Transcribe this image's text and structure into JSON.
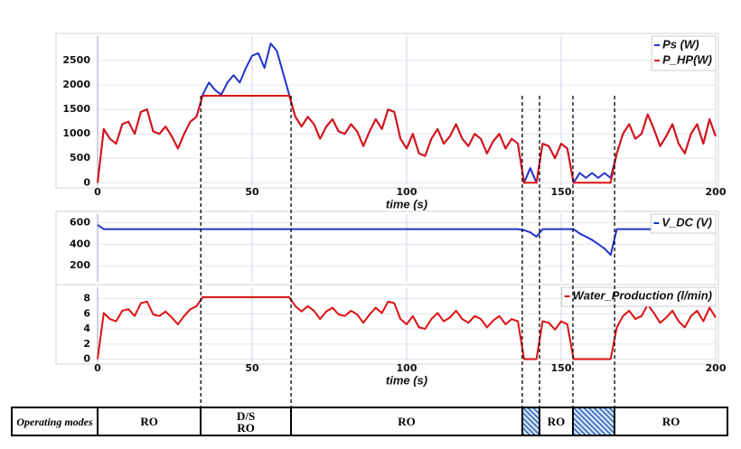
{
  "chart_data": [
    {
      "type": "line",
      "xlabel": "time (s)",
      "xlim": [
        0,
        200
      ],
      "ylim": [
        -50,
        3000
      ],
      "xticks": [
        0,
        50,
        100,
        150,
        200
      ],
      "yticks": [
        0,
        500,
        1000,
        1500,
        2000,
        2500
      ],
      "grid": true,
      "legend": "upper right",
      "show_xtick_labels": true,
      "x": [
        0,
        2,
        4,
        6,
        8,
        10,
        12,
        14,
        16,
        18,
        20,
        22,
        24,
        26,
        28,
        30,
        32,
        34,
        36,
        38,
        40,
        42,
        44,
        46,
        48,
        50,
        52,
        54,
        56,
        58,
        60,
        62,
        64,
        66,
        68,
        70,
        72,
        74,
        76,
        78,
        80,
        82,
        84,
        86,
        88,
        90,
        92,
        94,
        96,
        98,
        100,
        102,
        104,
        106,
        108,
        110,
        112,
        114,
        116,
        118,
        120,
        122,
        124,
        126,
        128,
        130,
        132,
        134,
        136,
        138,
        140,
        142,
        144,
        146,
        148,
        150,
        152,
        154,
        156,
        158,
        160,
        162,
        164,
        166,
        168,
        170,
        172,
        174,
        176,
        178,
        180,
        182,
        184,
        186,
        188,
        190,
        192,
        194,
        196,
        198,
        200
      ],
      "series": [
        {
          "name": "Ps (W)",
          "color": "#2233cc",
          "values": [
            0,
            1100,
            900,
            800,
            1200,
            1250,
            1000,
            1450,
            1500,
            1050,
            1000,
            1150,
            950,
            700,
            1000,
            1250,
            1350,
            1800,
            2050,
            1900,
            1800,
            2050,
            2200,
            2050,
            2350,
            2600,
            2650,
            2350,
            2850,
            2700,
            2250,
            1800,
            1350,
            1150,
            1350,
            1200,
            900,
            1150,
            1300,
            1050,
            1000,
            1200,
            1050,
            750,
            1050,
            1300,
            1100,
            1500,
            1450,
            900,
            700,
            1000,
            600,
            550,
            900,
            1100,
            800,
            950,
            1200,
            900,
            750,
            1000,
            900,
            600,
            850,
            1000,
            700,
            900,
            800,
            0,
            300,
            0,
            800,
            750,
            500,
            800,
            700,
            0,
            200,
            100,
            200,
            100,
            200,
            100,
            600,
            1000,
            1200,
            900,
            1000,
            1400,
            1100,
            750,
            950,
            1200,
            800,
            600,
            1000,
            1200,
            800,
            1300,
            950
          ]
        },
        {
          "name": "P_HP(W)",
          "color": "#dd1111",
          "values": [
            0,
            1100,
            900,
            800,
            1200,
            1250,
            1000,
            1450,
            1500,
            1050,
            1000,
            1150,
            950,
            700,
            1000,
            1250,
            1350,
            1780,
            1780,
            1780,
            1780,
            1780,
            1780,
            1780,
            1780,
            1780,
            1780,
            1780,
            1780,
            1780,
            1780,
            1780,
            1350,
            1150,
            1350,
            1200,
            900,
            1150,
            1300,
            1050,
            1000,
            1200,
            1050,
            750,
            1050,
            1300,
            1100,
            1500,
            1450,
            900,
            700,
            1000,
            600,
            550,
            900,
            1100,
            800,
            950,
            1200,
            900,
            750,
            1000,
            900,
            600,
            850,
            1000,
            700,
            900,
            800,
            0,
            0,
            0,
            800,
            750,
            500,
            800,
            700,
            0,
            0,
            0,
            0,
            0,
            0,
            0,
            600,
            1000,
            1200,
            900,
            1000,
            1400,
            1100,
            750,
            950,
            1200,
            800,
            600,
            1000,
            1200,
            800,
            1300,
            950
          ]
        }
      ]
    },
    {
      "type": "line",
      "xlim": [
        0,
        200
      ],
      "ylim": [
        50,
        680
      ],
      "xticks": [
        0,
        50,
        100,
        150,
        200
      ],
      "yticks": [
        200,
        400,
        600
      ],
      "grid": true,
      "legend": "upper right",
      "show_xtick_labels": false,
      "x": [
        0,
        2,
        4,
        6,
        8,
        10,
        12,
        14,
        16,
        18,
        20,
        22,
        24,
        26,
        28,
        30,
        32,
        34,
        36,
        38,
        40,
        42,
        44,
        46,
        48,
        50,
        52,
        54,
        56,
        58,
        60,
        62,
        64,
        66,
        68,
        70,
        72,
        74,
        76,
        78,
        80,
        82,
        84,
        86,
        88,
        90,
        92,
        94,
        96,
        98,
        100,
        102,
        104,
        106,
        108,
        110,
        112,
        114,
        116,
        118,
        120,
        122,
        124,
        126,
        128,
        130,
        132,
        134,
        136,
        138,
        140,
        142,
        144,
        146,
        148,
        150,
        152,
        154,
        156,
        158,
        160,
        162,
        164,
        166,
        168,
        170,
        172,
        174,
        176,
        178,
        180,
        182,
        184,
        186,
        188,
        190,
        192,
        194,
        196,
        198,
        200
      ],
      "series": [
        {
          "name": "V_DC (V)",
          "color": "#2233cc",
          "values": [
            580,
            540,
            540,
            540,
            540,
            540,
            540,
            540,
            540,
            540,
            540,
            540,
            540,
            540,
            540,
            540,
            540,
            540,
            540,
            540,
            540,
            540,
            540,
            540,
            540,
            540,
            540,
            540,
            540,
            540,
            540,
            540,
            540,
            540,
            540,
            540,
            540,
            540,
            540,
            540,
            540,
            540,
            540,
            540,
            540,
            540,
            540,
            540,
            540,
            540,
            540,
            540,
            540,
            540,
            540,
            540,
            540,
            540,
            540,
            540,
            540,
            540,
            540,
            540,
            540,
            540,
            540,
            540,
            540,
            530,
            510,
            470,
            540,
            540,
            540,
            540,
            540,
            540,
            500,
            470,
            440,
            400,
            360,
            300,
            540,
            540,
            540,
            540,
            540,
            540,
            540,
            540,
            540,
            540,
            540,
            540,
            540,
            540,
            540,
            540,
            540
          ]
        }
      ]
    },
    {
      "type": "line",
      "xlabel": "time (s)",
      "xlim": [
        0,
        200
      ],
      "ylim": [
        -0.3,
        9.5
      ],
      "xticks": [
        0,
        50,
        100,
        150,
        200
      ],
      "yticks": [
        0,
        2,
        4,
        6,
        8
      ],
      "grid": true,
      "legend": "upper right",
      "show_xtick_labels": true,
      "x": [
        0,
        2,
        4,
        6,
        8,
        10,
        12,
        14,
        16,
        18,
        20,
        22,
        24,
        26,
        28,
        30,
        32,
        34,
        36,
        38,
        40,
        42,
        44,
        46,
        48,
        50,
        52,
        54,
        56,
        58,
        60,
        62,
        64,
        66,
        68,
        70,
        72,
        74,
        76,
        78,
        80,
        82,
        84,
        86,
        88,
        90,
        92,
        94,
        96,
        98,
        100,
        102,
        104,
        106,
        108,
        110,
        112,
        114,
        116,
        118,
        120,
        122,
        124,
        126,
        128,
        130,
        132,
        134,
        136,
        138,
        140,
        142,
        144,
        146,
        148,
        150,
        152,
        154,
        156,
        158,
        160,
        162,
        164,
        166,
        168,
        170,
        172,
        174,
        176,
        178,
        180,
        182,
        184,
        186,
        188,
        190,
        192,
        194,
        196,
        198,
        200
      ],
      "series": [
        {
          "name": "Water_Production (l/min)",
          "color": "#dd1111",
          "values": [
            0,
            6.1,
            5.3,
            5.0,
            6.4,
            6.6,
            5.7,
            7.4,
            7.6,
            5.9,
            5.7,
            6.3,
            5.5,
            4.6,
            5.7,
            6.6,
            7.0,
            8.2,
            8.2,
            8.2,
            8.2,
            8.2,
            8.2,
            8.2,
            8.2,
            8.2,
            8.2,
            8.2,
            8.2,
            8.2,
            8.2,
            8.2,
            7.0,
            6.3,
            7.0,
            6.4,
            5.3,
            6.3,
            6.8,
            5.9,
            5.7,
            6.4,
            5.9,
            4.8,
            5.9,
            6.8,
            6.1,
            7.6,
            7.4,
            5.3,
            4.6,
            5.7,
            4.2,
            4.0,
            5.3,
            6.1,
            5.0,
            5.5,
            6.4,
            5.3,
            4.8,
            5.7,
            5.3,
            4.2,
            5.1,
            5.7,
            4.6,
            5.3,
            5.0,
            0,
            0,
            0,
            5.0,
            4.8,
            3.9,
            5.0,
            4.6,
            0,
            0,
            0,
            0,
            0,
            0,
            0,
            4.2,
            5.7,
            6.4,
            5.3,
            5.7,
            7.2,
            6.1,
            4.8,
            5.5,
            6.4,
            5.0,
            4.2,
            5.7,
            6.4,
            5.0,
            6.8,
            5.5
          ]
        }
      ]
    }
  ],
  "operating_modes": {
    "header": "Operating modes",
    "transitions": [
      33.4,
      62.6,
      137.4,
      143,
      153.8,
      167.3
    ],
    "labels": [
      "RO",
      "D/S\nRO",
      "RO",
      null,
      "RO",
      null,
      "RO"
    ]
  }
}
